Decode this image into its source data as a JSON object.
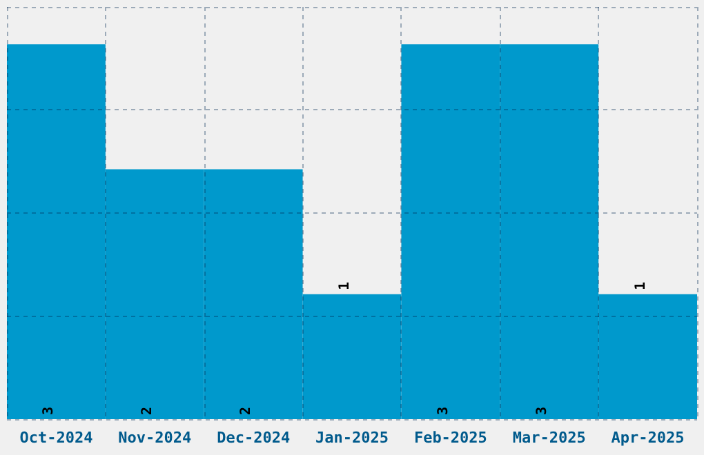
{
  "chart_data": {
    "type": "bar",
    "categories": [
      "Oct-2024",
      "Nov-2024",
      "Dec-2024",
      "Jan-2025",
      "Feb-2025",
      "Mar-2025",
      "Apr-2025"
    ],
    "values": [
      3,
      2,
      2,
      1,
      3,
      3,
      1
    ],
    "color": "#0099cc",
    "ylim": [
      0,
      3.3
    ],
    "yticks": [
      {
        "value": 0,
        "label": null
      },
      {
        "value": 0.825,
        "label": null
      },
      {
        "value": 1.65,
        "label": null
      },
      {
        "value": 2.475,
        "label": null
      },
      {
        "value": 3.3,
        "label": null
      }
    ],
    "grid": true,
    "data_labels": true,
    "tick_labels": "x"
  }
}
